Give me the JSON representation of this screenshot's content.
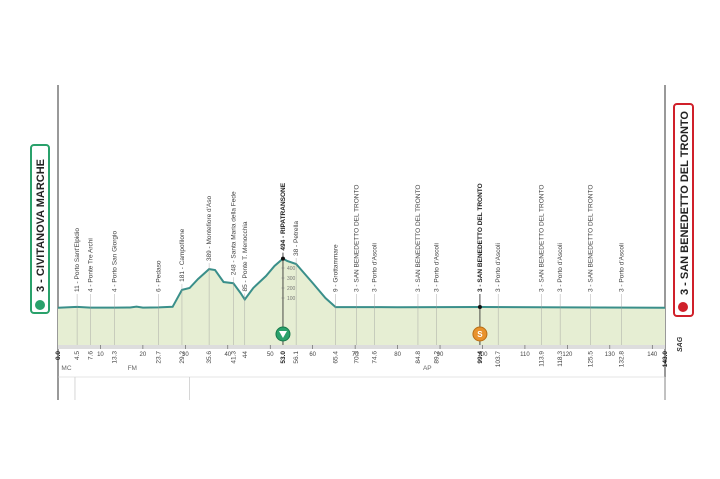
{
  "chart_data": {
    "type": "profile",
    "start": {
      "label": "3 - CIVITANOVA MARCHE",
      "km": 0,
      "km_label": "0.0"
    },
    "finish": {
      "label": "3 - SAN BENEDETTO DEL TRONTO",
      "km": 143,
      "km_label": "143.0"
    },
    "points": [
      {
        "label": "11 - Porto Sant'Elpidio",
        "km": 4.5
      },
      {
        "label": "4 - Ponte Tre Archi",
        "km": 7.6
      },
      {
        "label": "4 - Porto San Giorgio",
        "km": 13.3
      },
      {
        "label": "6 - Pedaso",
        "km": 23.7
      },
      {
        "label": "181 - Campofilone",
        "km": 29.2
      },
      {
        "label": "389 - Montefiore d'Aso",
        "km": 35.6
      },
      {
        "label": "248 - Santa Maria della Fede",
        "km": 41.3
      },
      {
        "label": "85 - Ponte T. Menocchia",
        "km": 44
      },
      {
        "label": "494 - RIPATRANSONE",
        "km": 53,
        "km_label": "53.0",
        "kind": "kom"
      },
      {
        "label": "38 - Petrella",
        "km": 56.1
      },
      {
        "label": "9 - Grottammare",
        "km": 65.4
      },
      {
        "label": "3 - SAN BENEDETTO DEL TRONTO",
        "km": 70.3
      },
      {
        "label": "3 - Porto d'Ascoli",
        "km": 74.6
      },
      {
        "label": "3 - SAN BENEDETTO DEL TRONTO",
        "km": 84.8
      },
      {
        "label": "3 - Porto d'Ascoli",
        "km": 89.2
      },
      {
        "label": "3 - SAN BENEDETTO DEL TRONTO",
        "km": 99.4,
        "kind": "sprint"
      },
      {
        "label": "3 - Porto d'Ascoli",
        "km": 103.7
      },
      {
        "label": "3 - SAN BENEDETTO DEL TRONTO",
        "km": 113.9
      },
      {
        "label": "3 - Porto d'Ascoli",
        "km": 118.3
      },
      {
        "label": "3 - SAN BENEDETTO DEL TRONTO",
        "km": 125.5
      },
      {
        "label": "3 - Porto d'Ascoli",
        "km": 132.8
      }
    ],
    "profile": {
      "x": [
        0,
        4.5,
        7.6,
        13.3,
        17,
        18.5,
        20,
        23.7,
        27,
        29.2,
        31,
        33,
        35.6,
        37,
        39,
        41.3,
        43,
        44,
        46,
        49,
        51,
        53,
        54,
        56.1,
        60,
        63,
        65.4,
        80,
        100,
        120,
        143
      ],
      "values": [
        3,
        11,
        4,
        4,
        5,
        14,
        4,
        6,
        12,
        181,
        200,
        290,
        389,
        380,
        260,
        248,
        150,
        85,
        200,
        320,
        420,
        494,
        470,
        440,
        250,
        100,
        9,
        8,
        10,
        6,
        3
      ],
      "color": "#3a8f8a",
      "fill": "#e6eed3"
    },
    "xlim": [
      0,
      143
    ],
    "xticks": [
      10,
      20,
      30,
      40,
      50,
      60,
      70,
      80,
      90,
      100,
      110,
      120,
      130,
      140
    ],
    "ylim": [
      -370,
      2230
    ],
    "yticks": [
      100,
      200,
      300,
      400
    ],
    "sprint_symbol": "S",
    "provinces": [
      {
        "name": "MC",
        "from": 0,
        "to": 4
      },
      {
        "name": "FM",
        "from": 4,
        "to": 31
      },
      {
        "name": "AP",
        "from": 31,
        "to": 143
      }
    ],
    "logo": "SAG"
  }
}
